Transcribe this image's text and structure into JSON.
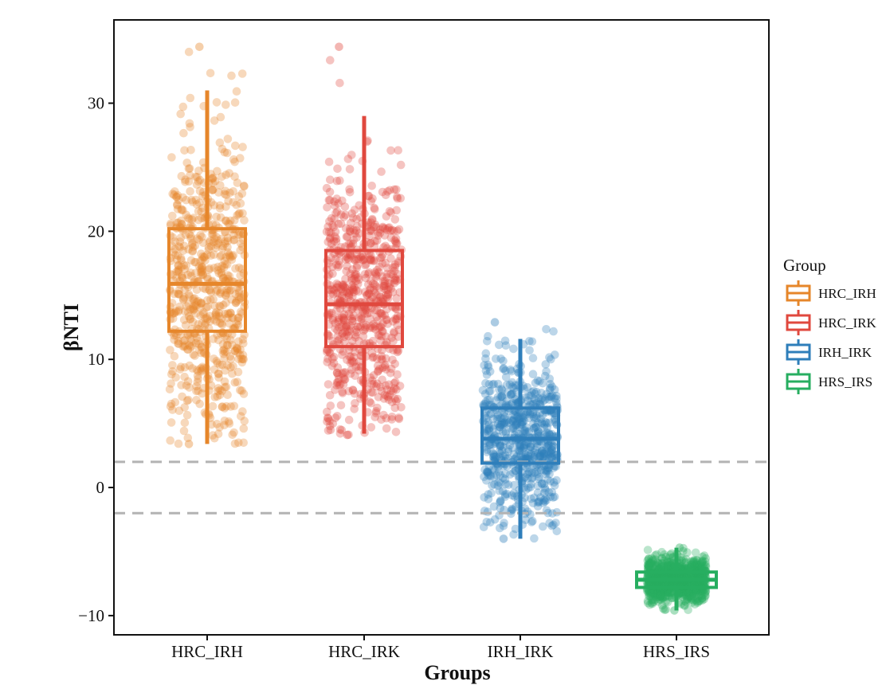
{
  "chart_data": {
    "type": "box-jitter",
    "xlabel": "Groups",
    "ylabel": "βNTI",
    "ylim": [
      -11.5,
      36.5
    ],
    "yticks": [
      -10,
      0,
      10,
      20,
      30
    ],
    "ytick_labels": [
      "−10",
      "0",
      "10",
      "20",
      "30"
    ],
    "reference_lines": [
      2,
      -2
    ],
    "categories": [
      "HRC_IRH",
      "HRC_IRK",
      "IRH_IRK",
      "HRS_IRS"
    ],
    "series": [
      {
        "name": "HRC_IRH",
        "color": "#E6862A",
        "min": 3.4,
        "q1": 12.2,
        "median": 15.9,
        "q3": 20.2,
        "max": 31.0,
        "point_min": 3.4,
        "point_max": 34.4
      },
      {
        "name": "HRC_IRK",
        "color": "#E0483E",
        "min": 4.2,
        "q1": 11.0,
        "median": 14.3,
        "q3": 18.5,
        "max": 29.0,
        "point_min": 4.1,
        "point_max": 34.4
      },
      {
        "name": "IRH_IRK",
        "color": "#2E7EBA",
        "min": -4.0,
        "q1": 1.9,
        "median": 3.8,
        "q3": 6.2,
        "max": 11.6,
        "point_min": -4.0,
        "point_max": 12.9
      },
      {
        "name": "HRS_IRS",
        "color": "#27AE60",
        "min": -9.6,
        "q1": -7.8,
        "median": -7.2,
        "q3": -6.6,
        "max": -4.7,
        "point_min": -9.6,
        "point_max": -4.7
      }
    ],
    "legend": {
      "title": "Group",
      "position": "right"
    },
    "grid": false
  }
}
